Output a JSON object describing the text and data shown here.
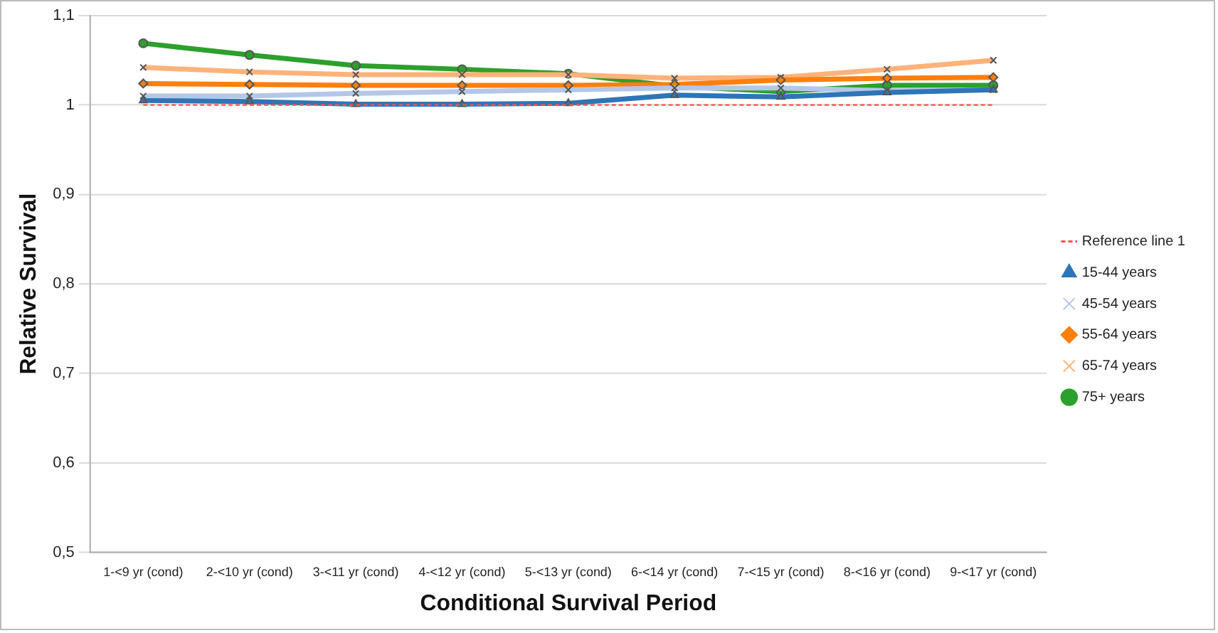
{
  "chart_data": {
    "type": "line",
    "xlabel": "Conditional Survival Period",
    "ylabel": "Relative Survival",
    "categories": [
      "1-<9 yr (cond)",
      "2-<10 yr (cond)",
      "3-<11 yr (cond)",
      "4-<12 yr (cond)",
      "5-<13 yr (cond)",
      "6-<14 yr (cond)",
      "7-<15 yr (cond)",
      "8-<16 yr (cond)",
      "9-<17 yr (cond)"
    ],
    "series": [
      {
        "name": "Reference line 1",
        "color": "#ff5050",
        "line_style": "dashed",
        "marker": "none",
        "values": [
          1,
          1,
          1,
          1,
          1,
          1,
          1,
          1,
          1
        ]
      },
      {
        "name": "15-44 years",
        "color": "#2e75b6",
        "marker": "triangle",
        "values": [
          1.005,
          1.004,
          1.001,
          1.001,
          1.002,
          1.011,
          1.009,
          1.014,
          1.017
        ]
      },
      {
        "name": "45-54 years",
        "color": "#b4c7e7",
        "marker": "cross",
        "values": [
          1.01,
          1.01,
          1.013,
          1.015,
          1.017,
          1.019,
          1.019,
          1.016,
          1.017
        ]
      },
      {
        "name": "55-64 years",
        "color": "#ff7f0e",
        "marker": "diamond",
        "values": [
          1.024,
          1.023,
          1.022,
          1.022,
          1.022,
          1.023,
          1.028,
          1.03,
          1.031
        ]
      },
      {
        "name": "65-74 years",
        "color": "#ffb27a",
        "marker": "cross",
        "values": [
          1.042,
          1.037,
          1.034,
          1.034,
          1.034,
          1.03,
          1.031,
          1.04,
          1.05
        ]
      },
      {
        "name": "75+ years",
        "color": "#2ca02c",
        "marker": "circle",
        "values": [
          1.069,
          1.056,
          1.044,
          1.04,
          1.035,
          1.021,
          1.015,
          1.022,
          1.022
        ]
      }
    ],
    "ylim": [
      0.5,
      1.1
    ],
    "yticks": [
      {
        "value": 0.5,
        "label": "0,5"
      },
      {
        "value": 0.6,
        "label": "0,6"
      },
      {
        "value": 0.7,
        "label": "0,7"
      },
      {
        "value": 0.8,
        "label": "0,8"
      },
      {
        "value": 0.9,
        "label": "0,9"
      },
      {
        "value": 1,
        "label": "1"
      },
      {
        "value": 1.1,
        "label": "1,1"
      }
    ],
    "grid": "y",
    "legend": "right",
    "line_style": "solid"
  }
}
